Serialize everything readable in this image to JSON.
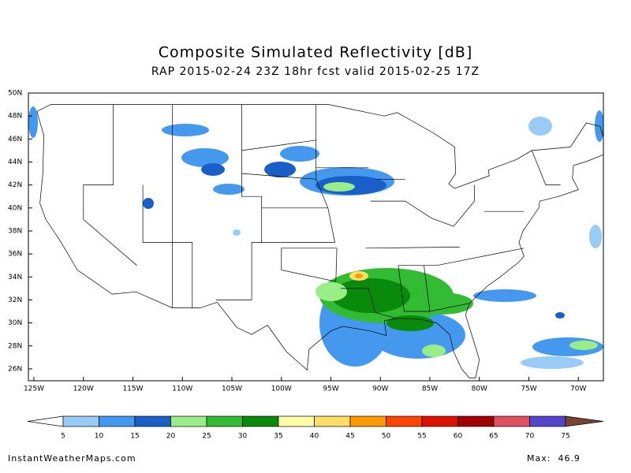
{
  "header": {
    "title": "Composite Simulated Reflectivity [dB]",
    "subtitle": "RAP 2015-02-24 23Z 18hr fcst valid 2015-02-25 17Z"
  },
  "map": {
    "lat_labels": [
      "50N",
      "48N",
      "46N",
      "44N",
      "42N",
      "40N",
      "38N",
      "36N",
      "34N",
      "32N",
      "30N",
      "28N",
      "26N"
    ],
    "lon_labels": [
      "125W",
      "120W",
      "115W",
      "110W",
      "105W",
      "100W",
      "95W",
      "90W",
      "85W",
      "80W",
      "75W",
      "70W"
    ]
  },
  "colorbar": {
    "labels": [
      "5",
      "10",
      "15",
      "20",
      "25",
      "30",
      "35",
      "40",
      "45",
      "50",
      "55",
      "60",
      "65",
      "70",
      "75"
    ],
    "colors": [
      "#ffffff",
      "#99ccf5",
      "#4499ee",
      "#1a5fc8",
      "#99ee88",
      "#33bb33",
      "#0a8a0a",
      "#ffffaa",
      "#ffdd66",
      "#ff9900",
      "#ff4400",
      "#dd1100",
      "#a00000",
      "#e05060",
      "#5544cc",
      "#774433"
    ]
  },
  "footer": {
    "site": "InstantWeatherMaps.com",
    "max": "Max:  46.9"
  }
}
